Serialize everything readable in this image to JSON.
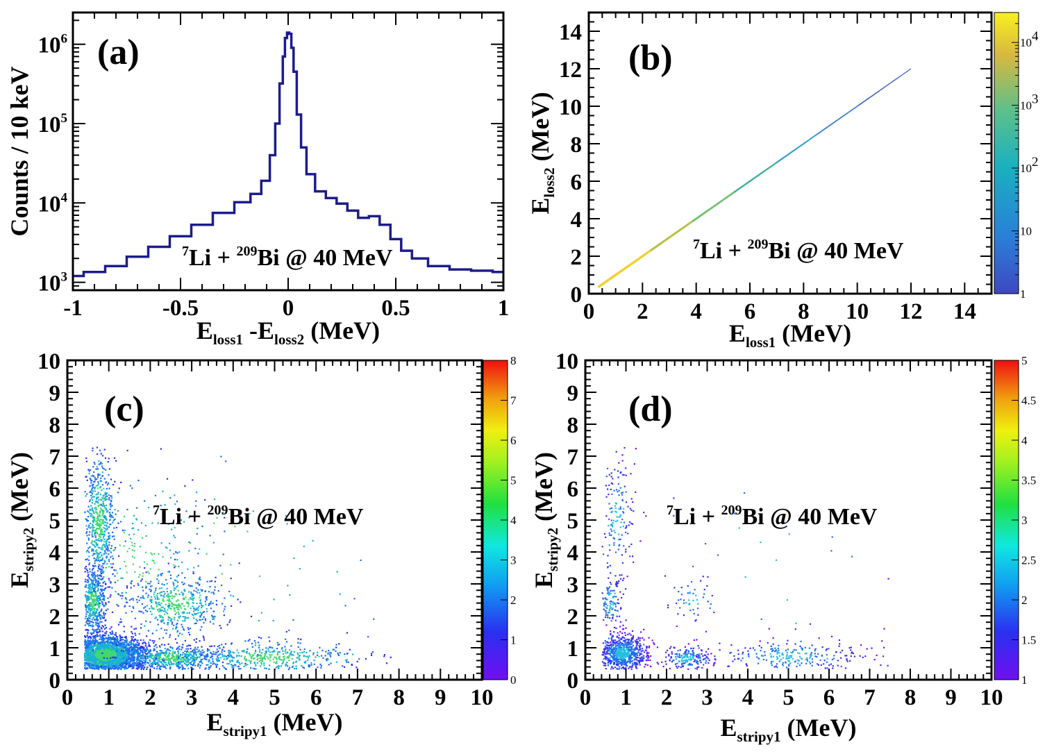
{
  "chart_data": [
    {
      "type": "line",
      "panel_label": "(a)",
      "annotation": {
        "pre": "7",
        "a": "Li + ",
        "sup": "209",
        "b": "Bi @ 40 MeV"
      },
      "xlabel": {
        "main": "E",
        "sub": "loss1",
        "rest": " -E",
        "sub2": "loss2",
        "tail": " (MeV)"
      },
      "ylabel": "Counts / 10 keV",
      "xlim": [
        -1,
        1
      ],
      "ylim_log10": [
        2.9,
        6.4
      ],
      "y_scale": "log",
      "xticks": [
        {
          "v": -1,
          "label": "-1"
        },
        {
          "v": -0.5,
          "label": "-0.5"
        },
        {
          "v": 0,
          "label": "0"
        },
        {
          "v": 0.5,
          "label": "0.5"
        },
        {
          "v": 1,
          "label": "1"
        }
      ],
      "yticks": [
        {
          "v": 3,
          "base": "10",
          "exp": "3"
        },
        {
          "v": 4,
          "base": "10",
          "exp": "4"
        },
        {
          "v": 5,
          "base": "10",
          "exp": "5"
        },
        {
          "v": 6,
          "base": "10",
          "exp": "6"
        }
      ],
      "series": [
        {
          "color": "#1c1c8c",
          "x": [
            -1.0,
            -0.9,
            -0.8,
            -0.7,
            -0.6,
            -0.5,
            -0.4,
            -0.3,
            -0.2,
            -0.15,
            -0.1,
            -0.07,
            -0.05,
            -0.03,
            -0.02,
            -0.01,
            0.0,
            0.01,
            0.02,
            0.03,
            0.05,
            0.07,
            0.1,
            0.15,
            0.2,
            0.25,
            0.3,
            0.35,
            0.4,
            0.45,
            0.5,
            0.55,
            0.6,
            0.7,
            0.8,
            0.9,
            1.0
          ],
          "y": [
            1200,
            1350,
            1600,
            2100,
            2800,
            3800,
            5300,
            7500,
            10200,
            13000,
            19000,
            40000,
            100000,
            320000,
            700000,
            1200000,
            1400000,
            1350000,
            900000,
            450000,
            130000,
            50000,
            23000,
            14000,
            11500,
            9800,
            8000,
            6500,
            6800,
            5300,
            3500,
            2500,
            2000,
            1600,
            1450,
            1400,
            1350
          ]
        }
      ]
    },
    {
      "type": "heatmap",
      "panel_label": "(b)",
      "annotation": {
        "pre": "7",
        "a": "Li + ",
        "sup": "209",
        "b": "Bi @ 40 MeV"
      },
      "xlabel": {
        "main": "E",
        "sub": "loss1",
        "tail": " (MeV)"
      },
      "ylabel": {
        "main": "E",
        "sub": "loss2",
        "tail": " (MeV)"
      },
      "xlim": [
        0,
        15
      ],
      "ylim": [
        0,
        15
      ],
      "xticks": [
        "0",
        "2",
        "4",
        "6",
        "8",
        "10",
        "12",
        "14"
      ],
      "yticks": [
        "0",
        "2",
        "4",
        "6",
        "8",
        "10",
        "12",
        "14"
      ],
      "colorbar": {
        "scale": "log",
        "range": [
          1,
          30000
        ],
        "labels": [
          {
            "v": 1,
            "text": "1"
          },
          {
            "v": 10,
            "text": "10"
          },
          {
            "v": 100,
            "base": "10",
            "exp": "2"
          },
          {
            "v": 1000,
            "base": "10",
            "exp": "3"
          },
          {
            "v": 10000,
            "base": "10",
            "exp": "4"
          }
        ]
      },
      "diagonal_band": {
        "x_start": 0.35,
        "x_end": 12.0,
        "slope": 1.0
      }
    },
    {
      "type": "heatmap",
      "panel_label": "(c)",
      "annotation": {
        "pre": "7",
        "a": "Li + ",
        "sup": "209",
        "b": "Bi @ 40 MeV"
      },
      "xlabel": {
        "main": "E",
        "sub": "stripy1",
        "tail": " (MeV)"
      },
      "ylabel": {
        "main": "E",
        "sub": "stripy2",
        "tail": " (MeV)"
      },
      "xlim": [
        0,
        10
      ],
      "ylim": [
        0,
        10
      ],
      "xticks": [
        "0",
        "1",
        "2",
        "3",
        "4",
        "5",
        "6",
        "7",
        "8",
        "9",
        "10"
      ],
      "yticks": [
        "0",
        "1",
        "2",
        "3",
        "4",
        "5",
        "6",
        "7",
        "8",
        "9",
        "10"
      ],
      "colorbar": {
        "scale": "linear",
        "range": [
          0,
          8
        ],
        "labels": [
          "0",
          "1",
          "2",
          "3",
          "4",
          "5",
          "6",
          "7",
          "8"
        ]
      },
      "clusters": [
        {
          "cx": 0.9,
          "cy": 0.8,
          "sx": 0.45,
          "sy": 0.3,
          "n": 3200
        },
        {
          "cx": 0.6,
          "cy": 2.5,
          "sx": 0.15,
          "sy": 0.5,
          "n": 500
        },
        {
          "cx": 0.75,
          "cy": 5.0,
          "sx": 0.2,
          "sy": 1.0,
          "n": 600
        },
        {
          "cx": 2.6,
          "cy": 2.4,
          "sx": 0.6,
          "sy": 0.5,
          "n": 500
        },
        {
          "cx": 2.5,
          "cy": 0.7,
          "sx": 0.6,
          "sy": 0.2,
          "n": 600
        },
        {
          "cx": 4.8,
          "cy": 0.7,
          "sx": 1.1,
          "sy": 0.25,
          "n": 500
        },
        {
          "cx": 1.8,
          "cy": 3.8,
          "sx": 1.0,
          "sy": 1.2,
          "n": 250
        },
        {
          "cx": 4.0,
          "cy": 4.0,
          "sx": 2.0,
          "sy": 2.0,
          "n": 80
        }
      ]
    },
    {
      "type": "heatmap",
      "panel_label": "(d)",
      "annotation": {
        "pre": "7",
        "a": "Li + ",
        "sup": "209",
        "b": "Bi @ 40 MeV"
      },
      "xlabel": {
        "main": "E",
        "sub": "stripy1",
        "tail": " (MeV)"
      },
      "ylabel": {
        "main": "E",
        "sub": "stripy2",
        "tail": " (MeV)"
      },
      "xlim": [
        0,
        10
      ],
      "ylim": [
        0,
        10
      ],
      "xticks": [
        "0",
        "1",
        "2",
        "3",
        "4",
        "5",
        "6",
        "7",
        "8",
        "9",
        "10"
      ],
      "yticks": [
        "0",
        "1",
        "2",
        "3",
        "4",
        "5",
        "6",
        "7",
        "8",
        "9",
        "10"
      ],
      "colorbar": {
        "scale": "linear",
        "range": [
          1,
          5
        ],
        "labels": [
          "1",
          "1.5",
          "2",
          "2.5",
          "3",
          "3.5",
          "4",
          "4.5",
          "5"
        ]
      },
      "clusters": [
        {
          "cx": 0.9,
          "cy": 0.85,
          "sx": 0.3,
          "sy": 0.3,
          "n": 750
        },
        {
          "cx": 0.6,
          "cy": 2.5,
          "sx": 0.15,
          "sy": 0.45,
          "n": 120
        },
        {
          "cx": 0.75,
          "cy": 5.0,
          "sx": 0.2,
          "sy": 1.0,
          "n": 160
        },
        {
          "cx": 2.6,
          "cy": 2.5,
          "sx": 0.3,
          "sy": 0.35,
          "n": 50
        },
        {
          "cx": 2.5,
          "cy": 0.7,
          "sx": 0.3,
          "sy": 0.2,
          "n": 180
        },
        {
          "cx": 5.0,
          "cy": 0.75,
          "sx": 1.0,
          "sy": 0.25,
          "n": 260
        },
        {
          "cx": 4.5,
          "cy": 4.0,
          "sx": 1.8,
          "sy": 2.0,
          "n": 40
        }
      ]
    }
  ]
}
